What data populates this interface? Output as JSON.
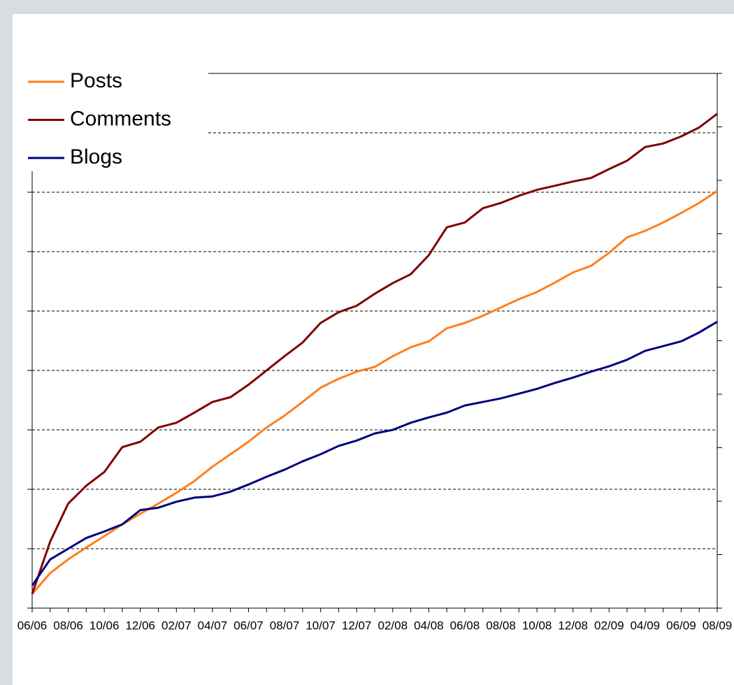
{
  "chart_data": {
    "type": "line",
    "categories": [
      "06/06",
      null,
      "08/06",
      null,
      "10/06",
      null,
      "12/06",
      null,
      "02/07",
      null,
      "04/07",
      null,
      "06/07",
      null,
      "08/07",
      null,
      "10/07",
      null,
      "12/07",
      null,
      "02/08",
      null,
      "04/08",
      null,
      "06/08",
      null,
      "08/08",
      null,
      "10/08",
      null,
      "12/08",
      null,
      "02/09",
      null,
      "04/09",
      null,
      "06/09",
      null,
      "08/09"
    ],
    "series": [
      {
        "name": "Posts",
        "color": "#ff7f1e",
        "values": [
          0.24,
          0.59,
          0.82,
          1.02,
          1.21,
          1.41,
          1.59,
          1.76,
          1.94,
          2.14,
          2.38,
          2.59,
          2.8,
          3.04,
          3.24,
          3.47,
          3.71,
          3.86,
          3.98,
          4.06,
          4.24,
          4.39,
          4.49,
          4.71,
          4.8,
          4.92,
          5.06,
          5.2,
          5.32,
          5.48,
          5.65,
          5.76,
          5.98,
          6.24,
          6.35,
          6.49,
          6.65,
          6.82,
          7.02
        ]
      },
      {
        "name": "Comments",
        "color": "#800000",
        "values": [
          0.24,
          1.12,
          1.76,
          2.06,
          2.29,
          2.71,
          2.8,
          3.04,
          3.12,
          3.29,
          3.47,
          3.55,
          3.76,
          4,
          4.24,
          4.47,
          4.8,
          4.98,
          5.09,
          5.29,
          5.47,
          5.62,
          5.94,
          6.41,
          6.49,
          6.73,
          6.82,
          6.94,
          7.04,
          7.11,
          7.18,
          7.24,
          7.39,
          7.53,
          7.76,
          7.82,
          7.94,
          8.09,
          8.32
        ]
      },
      {
        "name": "Blogs",
        "color": "#000080",
        "values": [
          0.38,
          0.82,
          1,
          1.18,
          1.29,
          1.41,
          1.65,
          1.69,
          1.79,
          1.86,
          1.88,
          1.96,
          2.08,
          2.21,
          2.33,
          2.47,
          2.59,
          2.73,
          2.82,
          2.94,
          3,
          3.12,
          3.21,
          3.29,
          3.41,
          3.47,
          3.53,
          3.61,
          3.69,
          3.79,
          3.88,
          3.98,
          4.07,
          4.18,
          4.33,
          4.41,
          4.49,
          4.64,
          4.82
        ]
      }
    ],
    "ylim": [
      0,
      9
    ],
    "yticks": [
      0,
      1,
      2,
      3,
      4,
      5,
      6,
      7,
      8,
      9
    ],
    "y2lim": [
      0,
      10
    ],
    "y2ticks": [
      0,
      1,
      2,
      3,
      4,
      5,
      6,
      7,
      8,
      9,
      10
    ],
    "grid": true,
    "legend": "top-left"
  }
}
